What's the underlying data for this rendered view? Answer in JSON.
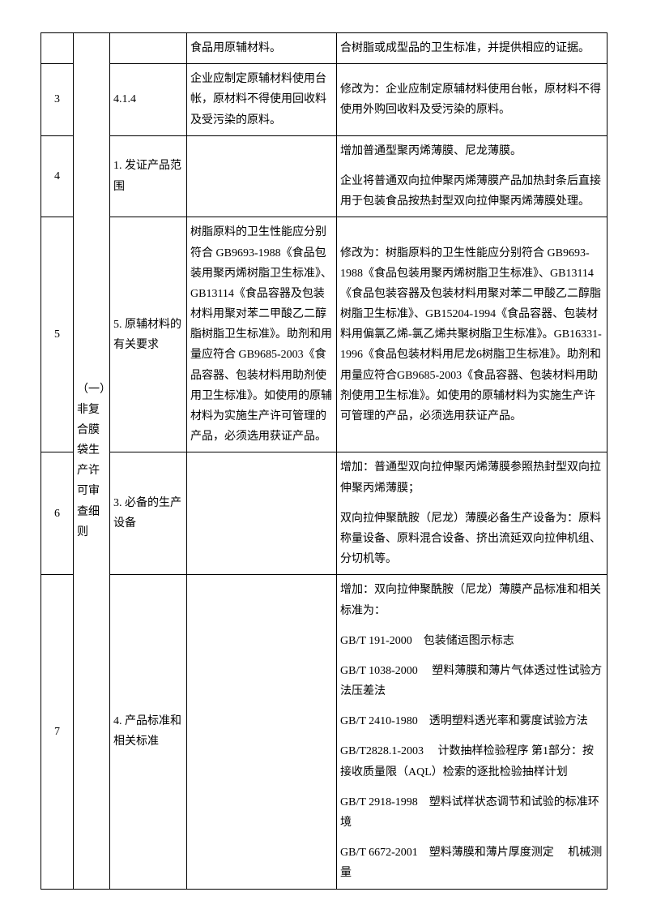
{
  "rows": [
    {
      "num": "",
      "sec": "",
      "orig": "食品用原辅材料。",
      "chg": "合树脂或成型品的卫生标准，并提供相应的证据。"
    },
    {
      "num": "3",
      "sec": "4.1.4",
      "orig": "企业应制定原辅材料使用台帐，原材料不得使用回收料及受污染的原料。",
      "chg": "修改为：企业应制定原辅材料使用台帐，原材料不得使用外购回收料及受污染的原料。"
    },
    {
      "num": "4",
      "sec": "1. 发证产品范围",
      "orig": "",
      "chg_paras": [
        "增加普通型聚丙烯薄膜、尼龙薄膜。",
        "企业将普通双向拉伸聚丙烯薄膜产品加热封条后直接用于包装食品按热封型双向拉伸聚丙烯薄膜处理。"
      ]
    },
    {
      "num": "5",
      "sec": "5. 原辅材料的有关要求",
      "orig": "树脂原料的卫生性能应分别符合 GB9693-1988《食品包装用聚丙烯树脂卫生标准》、GB13114《食品容器及包装材料用聚对苯二甲酸乙二醇脂树脂卫生标准》。助剂和用量应符合 GB9685-2003《食品容器、包装材料用助剂使用卫生标准》。如使用的原辅材料为实施生产许可管理的产品，必须选用获证产品。",
      "chg": "修改为：树脂原料的卫生性能应分别符合 GB9693-1988《食品包装用聚丙烯树脂卫生标准》、GB13114《食品包装容器及包装材料用聚对苯二甲酸乙二醇脂树脂卫生标准》、GB15204-1994《食品容器、包装材料用偏氯乙烯-氯乙烯共聚树脂卫生标准》。GB16331-1996《食品包装材料用尼龙6树脂卫生标准》。助剂和用量应符合GB9685-2003《食品容器、包装材料用助剂使用卫生标准》。如使用的原辅材料为实施生产许可管理的产品，必须选用获证产品。"
    },
    {
      "num": "6",
      "sec": "3. 必备的生产设备",
      "orig": "",
      "chg_paras": [
        "增加：普通型双向拉伸聚丙烯薄膜参照热封型双向拉伸聚丙烯薄膜；",
        "双向拉伸聚酰胺（尼龙）薄膜必备生产设备为：原料称量设备、原料混合设备、挤出流延双向拉伸机组、分切机等。"
      ]
    },
    {
      "num": "7",
      "sec": "4. 产品标准和相关标准",
      "orig": "",
      "chg_paras": [
        "增加：双向拉伸聚酰胺（尼龙）薄膜产品标准和相关标准为：",
        "GB/T 191-2000　包装储运图示标志",
        "GB/T 1038-2000　 塑料薄膜和薄片气体透过性试验方法压差法",
        "GB/T 2410-1980　透明塑料透光率和雾度试验方法",
        "GB/T2828.1-2003　 计数抽样检验程序 第1部分：按接收质量限（AQL）检索的逐批检验抽样计划",
        "GB/T 2918-1998　塑料试样状态调节和试验的标准环境",
        "GB/T 6672-2001　塑料薄膜和薄片厚度测定　 机械测量"
      ]
    }
  ],
  "category": "（一）非复合膜袋生产许可审查细则"
}
